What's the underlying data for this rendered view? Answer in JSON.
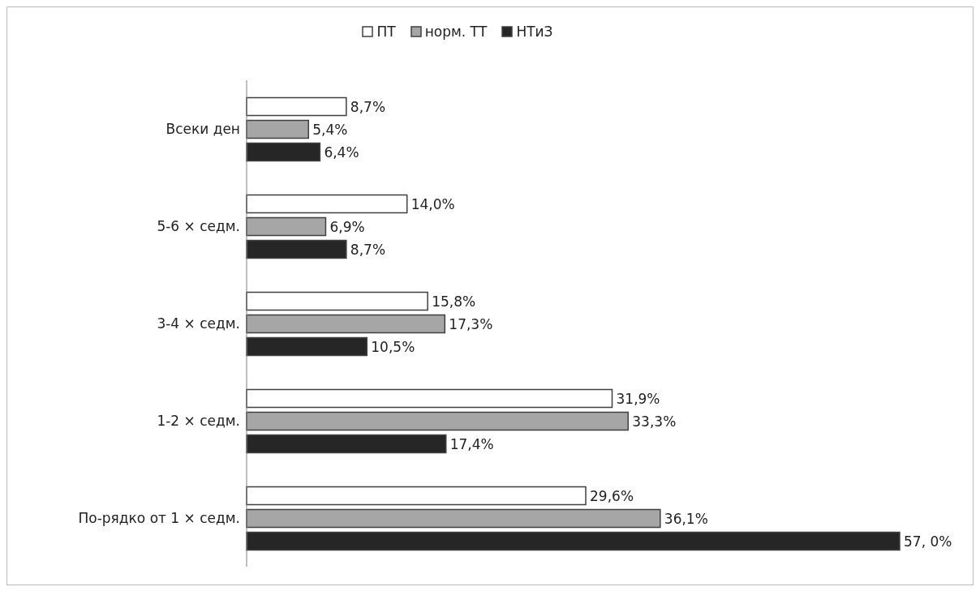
{
  "chart_data": {
    "type": "bar",
    "orientation": "horizontal",
    "categories": [
      "Всеки ден",
      "5-6 × седм.",
      "3-4 × седм.",
      "1-2 × седм.",
      "По-рядко от 1 × седм."
    ],
    "series": [
      {
        "name": "ПТ",
        "color": "#ffffff",
        "values": [
          8.7,
          14.0,
          15.8,
          31.9,
          29.6
        ],
        "value_labels": [
          "8,7%",
          "14,0%",
          "15,8%",
          "31,9%",
          "29,6%"
        ]
      },
      {
        "name": "норм. ТТ",
        "color": "#a6a6a6",
        "values": [
          5.4,
          6.9,
          17.3,
          33.3,
          36.1
        ],
        "value_labels": [
          "5,4%",
          "6,9%",
          "17,3%",
          "33,3%",
          "36,1%"
        ]
      },
      {
        "name": "НТиЗ",
        "color": "#262626",
        "values": [
          6.4,
          8.7,
          10.5,
          17.4,
          57.0
        ],
        "value_labels": [
          "6,4%",
          "8,7%",
          "10,5%",
          "17,4%",
          "57, 0%"
        ]
      }
    ],
    "legend": "top"
  }
}
